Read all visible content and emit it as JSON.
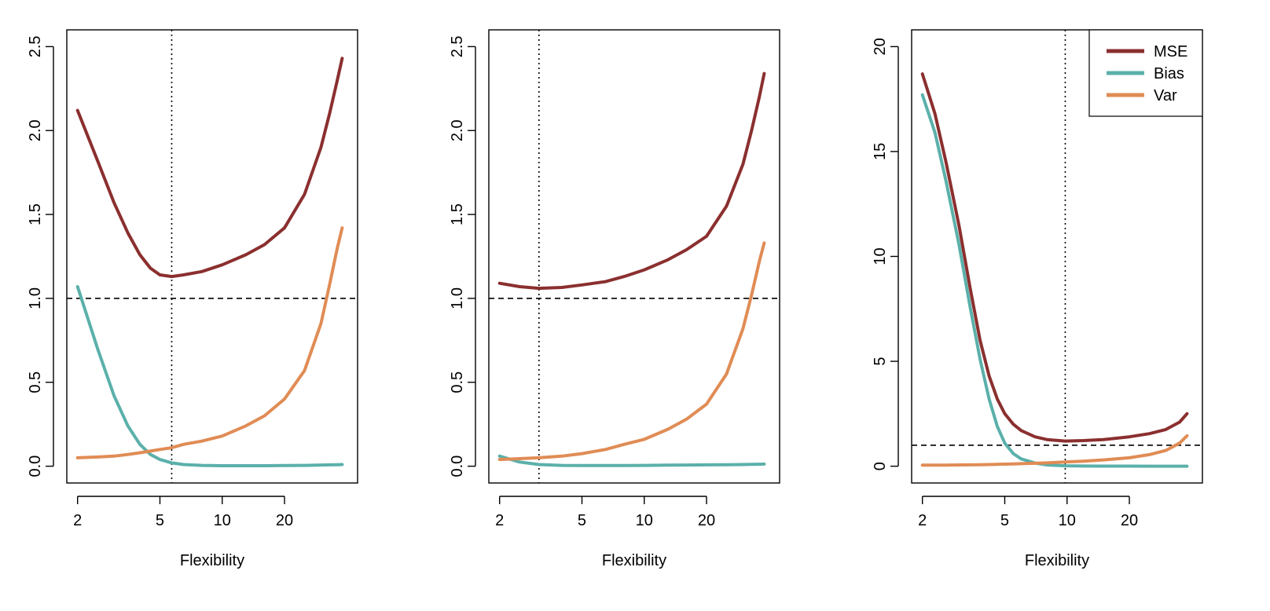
{
  "chart_data": [
    {
      "type": "line",
      "xlabel": "Flexibility",
      "ylabel": "",
      "x_scale": "log",
      "xlim": [
        2,
        40
      ],
      "ylim": [
        0,
        2.5
      ],
      "xticks": [
        2,
        5,
        10,
        20
      ],
      "xtick_labels": [
        "2",
        "5",
        "10",
        "20"
      ],
      "yticks": [
        0,
        0.5,
        1,
        1.5,
        2,
        2.5
      ],
      "ytick_labels": [
        "0.0",
        "0.5",
        "1.0",
        "1.5",
        "2.0",
        "2.5"
      ],
      "hline": 1.0,
      "vline": 5.7,
      "legend": false,
      "series": [
        {
          "name": "MSE",
          "color": "#8B2F2F",
          "x": [
            2,
            2.5,
            3,
            3.5,
            4,
            4.5,
            5,
            5.7,
            6.5,
            8,
            10,
            13,
            16,
            20,
            25,
            30,
            33,
            36,
            38
          ],
          "y": [
            2.12,
            1.82,
            1.57,
            1.39,
            1.26,
            1.18,
            1.14,
            1.13,
            1.14,
            1.16,
            1.2,
            1.26,
            1.32,
            1.42,
            1.62,
            1.9,
            2.1,
            2.3,
            2.43
          ]
        },
        {
          "name": "Bias",
          "color": "#5BB0AA",
          "x": [
            2,
            2.5,
            3,
            3.5,
            4,
            4.5,
            5,
            5.7,
            6.5,
            8,
            10,
            13,
            16,
            20,
            25,
            30,
            33,
            36,
            38
          ],
          "y": [
            1.07,
            0.7,
            0.42,
            0.24,
            0.13,
            0.07,
            0.04,
            0.02,
            0.01,
            0.005,
            0.003,
            0.003,
            0.003,
            0.004,
            0.005,
            0.007,
            0.008,
            0.009,
            0.01
          ]
        },
        {
          "name": "Var",
          "color": "#E08C55",
          "x": [
            2,
            2.5,
            3,
            3.5,
            4,
            4.5,
            5,
            5.7,
            6.5,
            8,
            10,
            13,
            16,
            20,
            25,
            30,
            33,
            36,
            38
          ],
          "y": [
            0.05,
            0.055,
            0.06,
            0.07,
            0.08,
            0.09,
            0.1,
            0.11,
            0.13,
            0.15,
            0.18,
            0.24,
            0.3,
            0.4,
            0.57,
            0.85,
            1.08,
            1.3,
            1.42
          ]
        }
      ]
    },
    {
      "type": "line",
      "xlabel": "Flexibility",
      "ylabel": "",
      "x_scale": "log",
      "xlim": [
        2,
        40
      ],
      "ylim": [
        0,
        2.5
      ],
      "xticks": [
        2,
        5,
        10,
        20
      ],
      "xtick_labels": [
        "2",
        "5",
        "10",
        "20"
      ],
      "yticks": [
        0,
        0.5,
        1,
        1.5,
        2,
        2.5
      ],
      "ytick_labels": [
        "0.0",
        "0.5",
        "1.0",
        "1.5",
        "2.0",
        "2.5"
      ],
      "hline": 1.0,
      "vline": 3.1,
      "legend": false,
      "series": [
        {
          "name": "MSE",
          "color": "#8B2F2F",
          "x": [
            2,
            2.5,
            3.1,
            4,
            5,
            6.5,
            8,
            10,
            13,
            16,
            20,
            25,
            30,
            33,
            36,
            38
          ],
          "y": [
            1.09,
            1.07,
            1.06,
            1.065,
            1.08,
            1.1,
            1.13,
            1.17,
            1.23,
            1.29,
            1.37,
            1.55,
            1.8,
            2.0,
            2.2,
            2.34
          ]
        },
        {
          "name": "Bias",
          "color": "#5BB0AA",
          "x": [
            2,
            2.5,
            3.1,
            4,
            5,
            6.5,
            8,
            10,
            13,
            16,
            20,
            25,
            30,
            33,
            36,
            38
          ],
          "y": [
            0.06,
            0.025,
            0.01,
            0.005,
            0.004,
            0.004,
            0.004,
            0.005,
            0.006,
            0.007,
            0.008,
            0.009,
            0.01,
            0.011,
            0.012,
            0.013
          ]
        },
        {
          "name": "Var",
          "color": "#E08C55",
          "x": [
            2,
            2.5,
            3.1,
            4,
            5,
            6.5,
            8,
            10,
            13,
            16,
            20,
            25,
            30,
            33,
            36,
            38
          ],
          "y": [
            0.04,
            0.045,
            0.05,
            0.06,
            0.075,
            0.1,
            0.13,
            0.16,
            0.22,
            0.28,
            0.37,
            0.55,
            0.82,
            1.02,
            1.22,
            1.33
          ]
        }
      ]
    },
    {
      "type": "line",
      "xlabel": "Flexibility",
      "ylabel": "",
      "x_scale": "log",
      "xlim": [
        2,
        40
      ],
      "ylim": [
        0,
        20
      ],
      "xticks": [
        2,
        5,
        10,
        20
      ],
      "xtick_labels": [
        "2",
        "5",
        "10",
        "20"
      ],
      "yticks": [
        0,
        5,
        10,
        15,
        20
      ],
      "ytick_labels": [
        "0",
        "5",
        "10",
        "15",
        "20"
      ],
      "hline": 1.0,
      "vline": 9.8,
      "legend": true,
      "legend_position": "top-right",
      "series": [
        {
          "name": "MSE",
          "color": "#8B2F2F",
          "x": [
            2,
            2.3,
            2.6,
            3,
            3.4,
            3.8,
            4.2,
            4.6,
            5,
            5.5,
            6,
            7,
            8,
            9.8,
            12,
            15,
            20,
            25,
            30,
            35,
            38
          ],
          "y": [
            18.7,
            16.8,
            14.5,
            11.5,
            8.5,
            6.0,
            4.3,
            3.2,
            2.5,
            2.0,
            1.7,
            1.4,
            1.27,
            1.2,
            1.22,
            1.27,
            1.4,
            1.55,
            1.75,
            2.1,
            2.5
          ]
        },
        {
          "name": "Bias",
          "color": "#5BB0AA",
          "x": [
            2,
            2.3,
            2.6,
            3,
            3.4,
            3.8,
            4.2,
            4.6,
            5,
            5.5,
            6,
            7,
            8,
            9.8,
            12,
            15,
            20,
            25,
            30,
            35,
            38
          ],
          "y": [
            17.7,
            15.9,
            13.6,
            10.6,
            7.6,
            5.1,
            3.2,
            1.9,
            1.1,
            0.6,
            0.35,
            0.15,
            0.06,
            0.02,
            0.01,
            0.005,
            0.003,
            0.002,
            0.002,
            0.002,
            0.002
          ]
        },
        {
          "name": "Var",
          "color": "#E08C55",
          "x": [
            2,
            2.3,
            2.6,
            3,
            3.4,
            3.8,
            4.2,
            4.6,
            5,
            5.5,
            6,
            7,
            8,
            9.8,
            12,
            15,
            20,
            25,
            30,
            35,
            38
          ],
          "y": [
            0.05,
            0.05,
            0.055,
            0.06,
            0.065,
            0.07,
            0.08,
            0.09,
            0.1,
            0.11,
            0.12,
            0.14,
            0.16,
            0.2,
            0.24,
            0.3,
            0.4,
            0.55,
            0.75,
            1.1,
            1.45
          ]
        }
      ]
    }
  ]
}
